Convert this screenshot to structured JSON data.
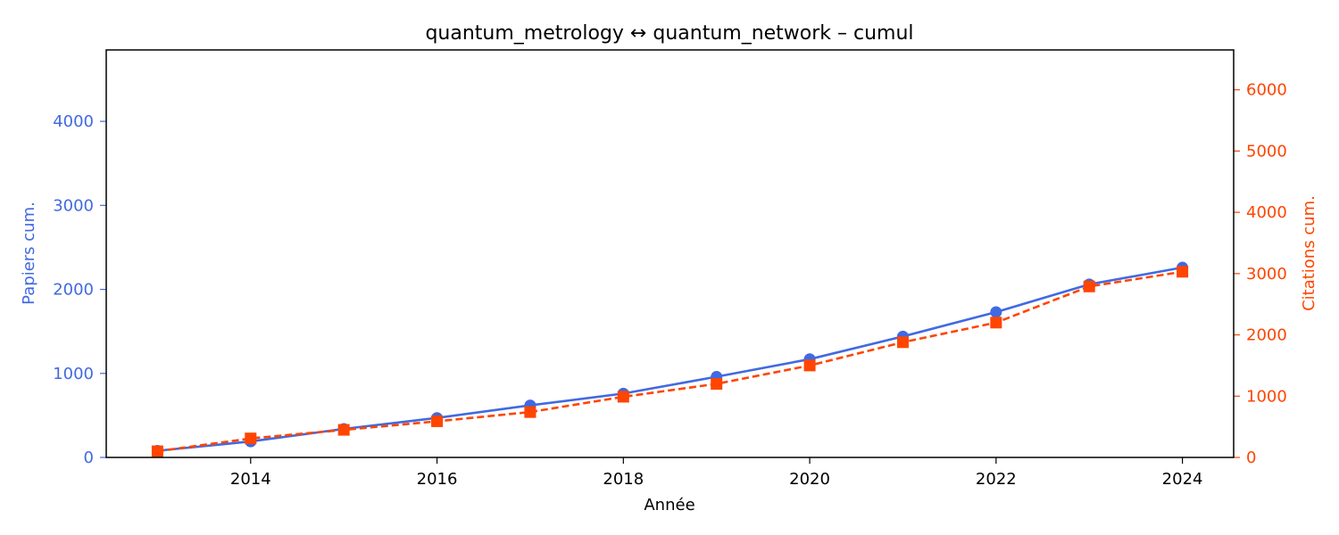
{
  "chart_data": {
    "type": "line",
    "title": "quantum_metrology  ↔  quantum_network  –  cumul",
    "xlabel": "Année",
    "ylabel_left": "Papiers cum.",
    "ylabel_right": "Citations cum.",
    "x": [
      2013,
      2014,
      2015,
      2016,
      2017,
      2018,
      2019,
      2020,
      2021,
      2022,
      2023,
      2024
    ],
    "xlim": [
      2012.45,
      2024.55
    ],
    "x_ticks": [
      2014,
      2016,
      2018,
      2020,
      2022,
      2024
    ],
    "y_left_lim": [
      0,
      4850
    ],
    "y_left_ticks": [
      0,
      1000,
      2000,
      3000,
      4000
    ],
    "y_right_lim": [
      0,
      6650
    ],
    "y_right_ticks": [
      0,
      1000,
      2000,
      3000,
      4000,
      5000,
      6000
    ],
    "grid": false,
    "series": [
      {
        "axis": "left",
        "color": "#4169e1",
        "line_style": "solid",
        "marker": "circle",
        "values": [
          80,
          190,
          340,
          470,
          620,
          760,
          960,
          1170,
          1440,
          1730,
          2060,
          2260
        ]
      },
      {
        "axis": "right",
        "color": "#ff4500",
        "line_style": "dashed",
        "marker": "square",
        "values": [
          100,
          310,
          450,
          590,
          740,
          990,
          1200,
          1500,
          1880,
          2200,
          2790,
          3030
        ]
      }
    ]
  }
}
